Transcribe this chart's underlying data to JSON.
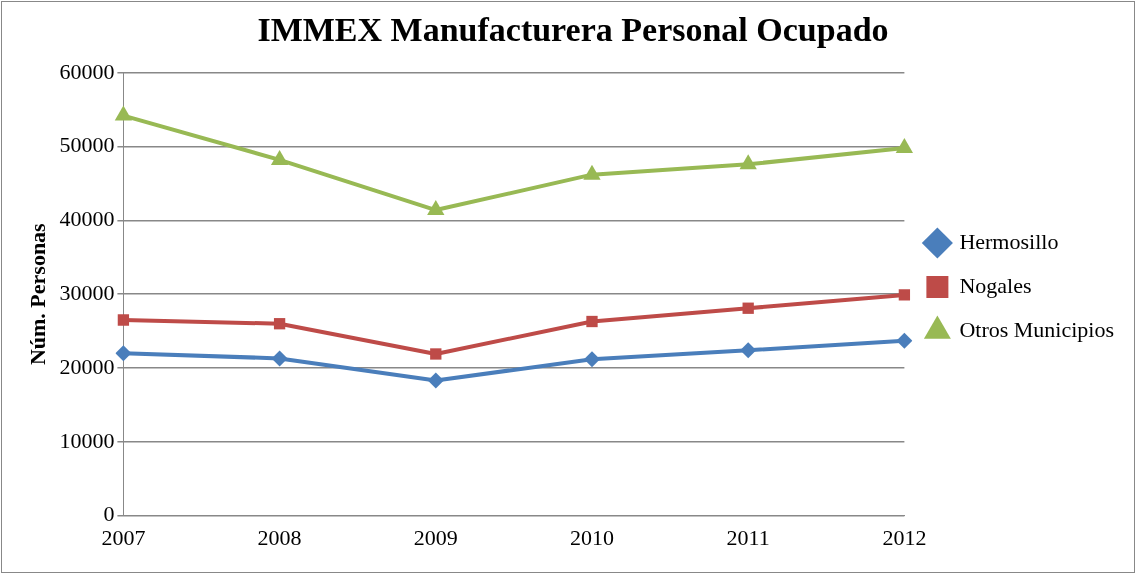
{
  "chart_data": {
    "type": "line",
    "title": "IMMEX Manufacturera Personal Ocupado",
    "ylabel": "Núm. Personas",
    "categories": [
      "2007",
      "2008",
      "2009",
      "2010",
      "2011",
      "2012"
    ],
    "series": [
      {
        "name": "Hermosillo",
        "color": "#4a7ebb",
        "marker": "diamond",
        "values": [
          22000,
          21300,
          18300,
          21200,
          22400,
          23700
        ]
      },
      {
        "name": "Nogales",
        "color": "#be4b48",
        "marker": "square",
        "values": [
          26500,
          26000,
          21900,
          26300,
          28100,
          29900
        ]
      },
      {
        "name": "Otros Municipios",
        "color": "#98b954",
        "marker": "triangle",
        "values": [
          54200,
          48200,
          41400,
          46200,
          47600,
          49800
        ]
      }
    ],
    "ylim": [
      0,
      60000
    ],
    "yticks": [
      0,
      10000,
      20000,
      30000,
      40000,
      50000,
      60000
    ],
    "grid": "y",
    "legend": "right",
    "line_style": "solid"
  }
}
